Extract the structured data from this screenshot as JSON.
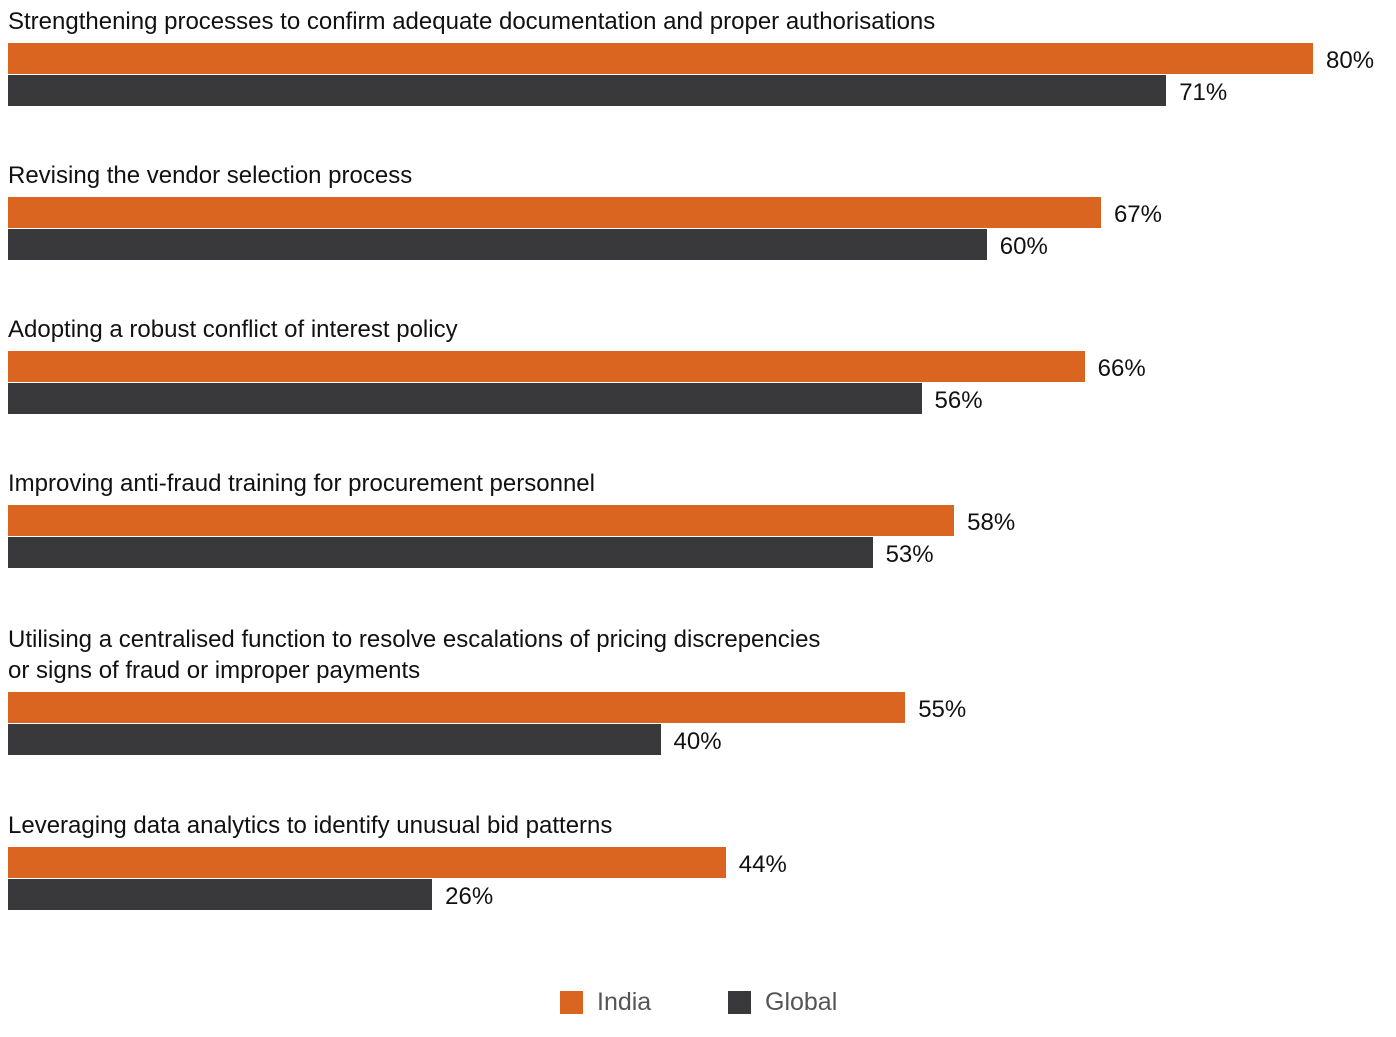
{
  "chart_data": {
    "type": "bar",
    "orientation": "horizontal",
    "categories": [
      "Strengthening processes to confirm adequate documentation and proper authorisations",
      "Revising the vendor selection process",
      "Adopting a robust conflict of interest policy",
      "Improving anti-fraud training for procurement personnel",
      "Utilising a centralised function to resolve escalations of pricing discrepencies\nor signs of fraud or improper payments",
      "Leveraging data analytics to identify unusual bid patterns"
    ],
    "series": [
      {
        "name": "India",
        "color": "#D96520",
        "values": [
          80,
          67,
          66,
          58,
          55,
          44
        ],
        "labels": [
          "80%",
          "67%",
          "66%",
          "58%",
          "55%",
          "44%"
        ]
      },
      {
        "name": "Global",
        "color": "#39383A",
        "values": [
          71,
          60,
          56,
          53,
          40,
          26
        ],
        "labels": [
          "71%",
          "60%",
          "56%",
          "53%",
          "40%",
          "26%"
        ]
      }
    ],
    "unit": "%",
    "xlim": [
      0,
      80
    ],
    "grid": false,
    "legend_position": "bottom"
  }
}
